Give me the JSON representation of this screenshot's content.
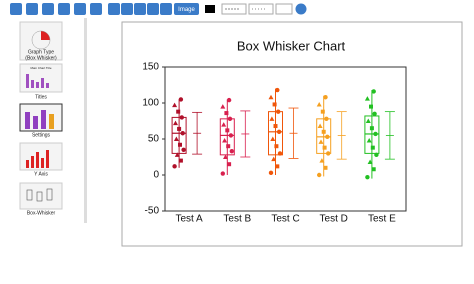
{
  "toolbar": {
    "image_button": "Image"
  },
  "sidebar": {
    "items": [
      {
        "label": [
          "Graph Type",
          "(Box Whisker)"
        ]
      },
      {
        "label": [
          "Titles"
        ],
        "preview": "Main Chart Title"
      },
      {
        "label": [
          "Settings"
        ]
      },
      {
        "label": [
          "Y Axis"
        ]
      },
      {
        "label": [
          "Box-Whisker"
        ]
      }
    ]
  },
  "chart_data": {
    "type": "box",
    "title": "Box Whisker Chart",
    "categories": [
      "Test A",
      "Test B",
      "Test C",
      "Test D",
      "Test E"
    ],
    "ylim": [
      -50,
      150
    ],
    "yticks": [
      -50,
      0,
      50,
      100,
      150
    ],
    "series": [
      {
        "color": "#b0102a",
        "low": 10,
        "q1": 30,
        "median": 58,
        "q3": 80,
        "high": 105,
        "mean": 58,
        "err": 29,
        "points": [
          12,
          20,
          28,
          35,
          42,
          50,
          58,
          64,
          72,
          80,
          88,
          97,
          105
        ]
      },
      {
        "color": "#d8204e",
        "low": 0,
        "q1": 28,
        "median": 55,
        "q3": 78,
        "high": 105,
        "mean": 57,
        "err": 32,
        "points": [
          2,
          15,
          25,
          33,
          40,
          48,
          55,
          62,
          70,
          78,
          86,
          95,
          104
        ]
      },
      {
        "color": "#f0560a",
        "low": 0,
        "q1": 28,
        "median": 60,
        "q3": 88,
        "high": 120,
        "mean": 58,
        "err": 35,
        "points": [
          3,
          12,
          22,
          30,
          40,
          50,
          60,
          68,
          78,
          88,
          98,
          108,
          118
        ]
      },
      {
        "color": "#f5a020",
        "low": -2,
        "q1": 30,
        "median": 53,
        "q3": 78,
        "high": 110,
        "mean": 55,
        "err": 33,
        "points": [
          0,
          10,
          20,
          30,
          38,
          46,
          53,
          60,
          68,
          78,
          88,
          98,
          108
        ]
      },
      {
        "color": "#22c022",
        "low": -5,
        "q1": 30,
        "median": 57,
        "q3": 82,
        "high": 118,
        "mean": 55,
        "err": 33,
        "points": [
          -3,
          8,
          18,
          28,
          38,
          48,
          57,
          65,
          75,
          85,
          95,
          106,
          116
        ]
      }
    ]
  }
}
